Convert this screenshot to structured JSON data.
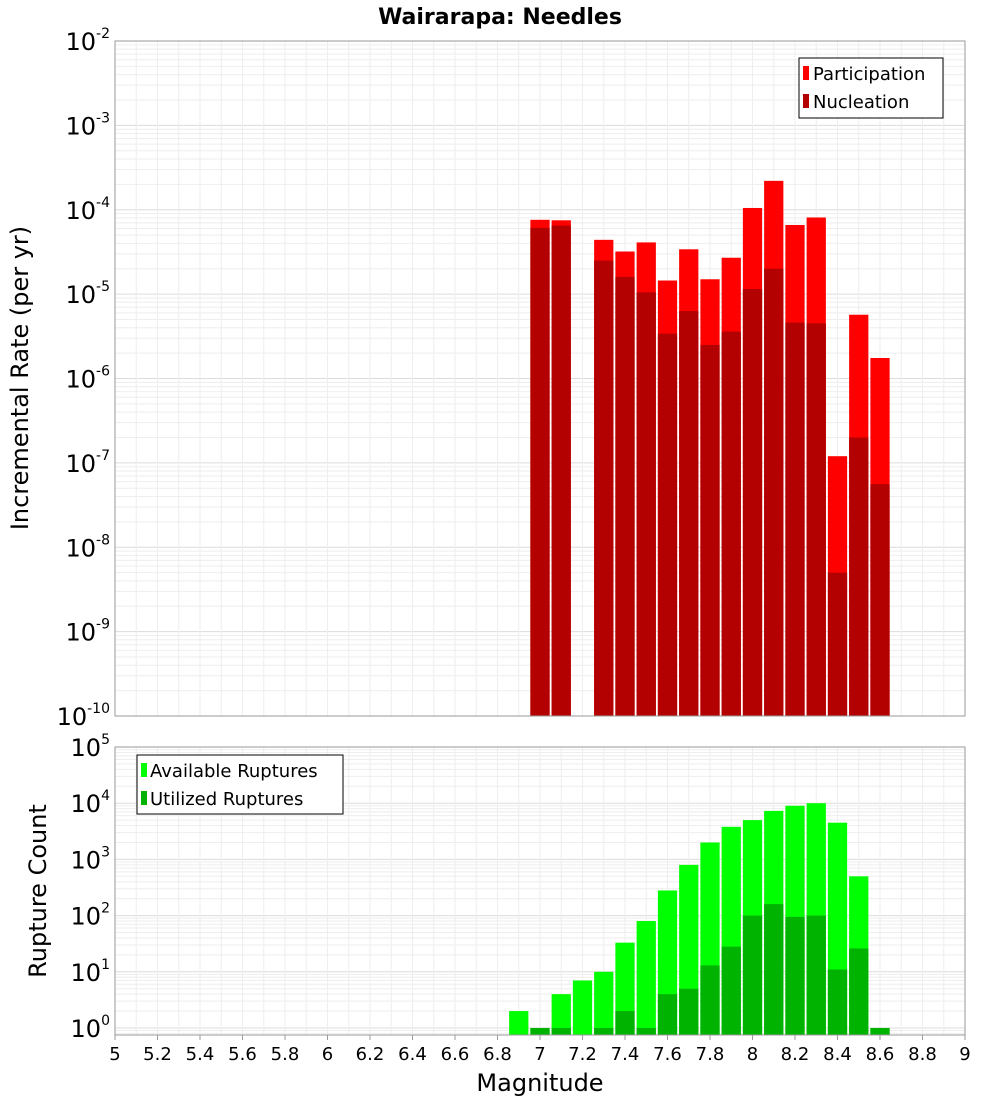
{
  "chart_data": [
    {
      "type": "bar",
      "title": "Wairarapa: Needles",
      "xlabel": "",
      "ylabel": "Incremental Rate (per yr)",
      "yscale": "log",
      "ylim": [
        1e-10,
        0.01
      ],
      "y_ticks": [
        {
          "base": "10",
          "exp": "-10"
        },
        {
          "base": "10",
          "exp": "-9"
        },
        {
          "base": "10",
          "exp": "-8"
        },
        {
          "base": "10",
          "exp": "-7"
        },
        {
          "base": "10",
          "exp": "-6"
        },
        {
          "base": "10",
          "exp": "-5"
        },
        {
          "base": "10",
          "exp": "-4"
        },
        {
          "base": "10",
          "exp": "-3"
        },
        {
          "base": "10",
          "exp": "-2"
        }
      ],
      "legend_position": "top-right",
      "x": [
        7.0,
        7.1,
        7.3,
        7.4,
        7.5,
        7.6,
        7.7,
        7.8,
        7.9,
        8.0,
        8.1,
        8.2,
        8.3,
        8.4,
        8.5,
        8.6
      ],
      "series": [
        {
          "name": "Participation",
          "color": "#ff0000",
          "values": [
            7.6e-05,
            7.5e-05,
            4.4e-05,
            3.2e-05,
            4.1e-05,
            1.45e-05,
            3.4e-05,
            1.5e-05,
            2.7e-05,
            0.000105,
            0.00022,
            6.6e-05,
            8.1e-05,
            1.2e-07,
            5.7e-06,
            1.75e-06
          ]
        },
        {
          "name": "Nucleation",
          "color": "#b30000",
          "values": [
            6.1e-05,
            6.5e-05,
            2.5e-05,
            1.6e-05,
            1.05e-05,
            3.4e-06,
            6.3e-06,
            2.5e-06,
            3.6e-06,
            1.15e-05,
            2e-05,
            4.6e-06,
            4.5e-06,
            5e-09,
            2e-07,
            5.6e-08
          ]
        }
      ]
    },
    {
      "type": "bar",
      "title": "",
      "xlabel": "Magnitude",
      "ylabel": "Rupture Count",
      "yscale": "log",
      "ylim": [
        0.75,
        100000
      ],
      "y_ticks": [
        {
          "base": "10",
          "exp": "0"
        },
        {
          "base": "10",
          "exp": "1"
        },
        {
          "base": "10",
          "exp": "2"
        },
        {
          "base": "10",
          "exp": "3"
        },
        {
          "base": "10",
          "exp": "4"
        },
        {
          "base": "10",
          "exp": "5"
        }
      ],
      "xlim": [
        5,
        9
      ],
      "x_ticks": [
        "5",
        "5.2",
        "5.4",
        "5.6",
        "5.8",
        "6",
        "6.2",
        "6.4",
        "6.6",
        "6.8",
        "7",
        "7.2",
        "7.4",
        "7.6",
        "7.8",
        "8",
        "8.2",
        "8.4",
        "8.6",
        "8.8",
        "9"
      ],
      "legend_position": "top-left",
      "x": [
        6.9,
        7.0,
        7.1,
        7.2,
        7.3,
        7.4,
        7.5,
        7.6,
        7.7,
        7.8,
        7.9,
        8.0,
        8.1,
        8.2,
        8.3,
        8.4,
        8.5,
        8.6
      ],
      "series": [
        {
          "name": "Available Ruptures",
          "color": "#00ff00",
          "values": [
            2,
            1,
            4,
            7,
            10,
            33,
            80,
            280,
            800,
            2000,
            3800,
            5000,
            7300,
            9000,
            10000,
            4500,
            500,
            1
          ]
        },
        {
          "name": "Utilized Ruptures",
          "color": "#00b300",
          "values": [
            null,
            1,
            1,
            null,
            1,
            2,
            1,
            4,
            5,
            13,
            28,
            100,
            160,
            95,
            100,
            11,
            26,
            1
          ]
        }
      ]
    }
  ]
}
